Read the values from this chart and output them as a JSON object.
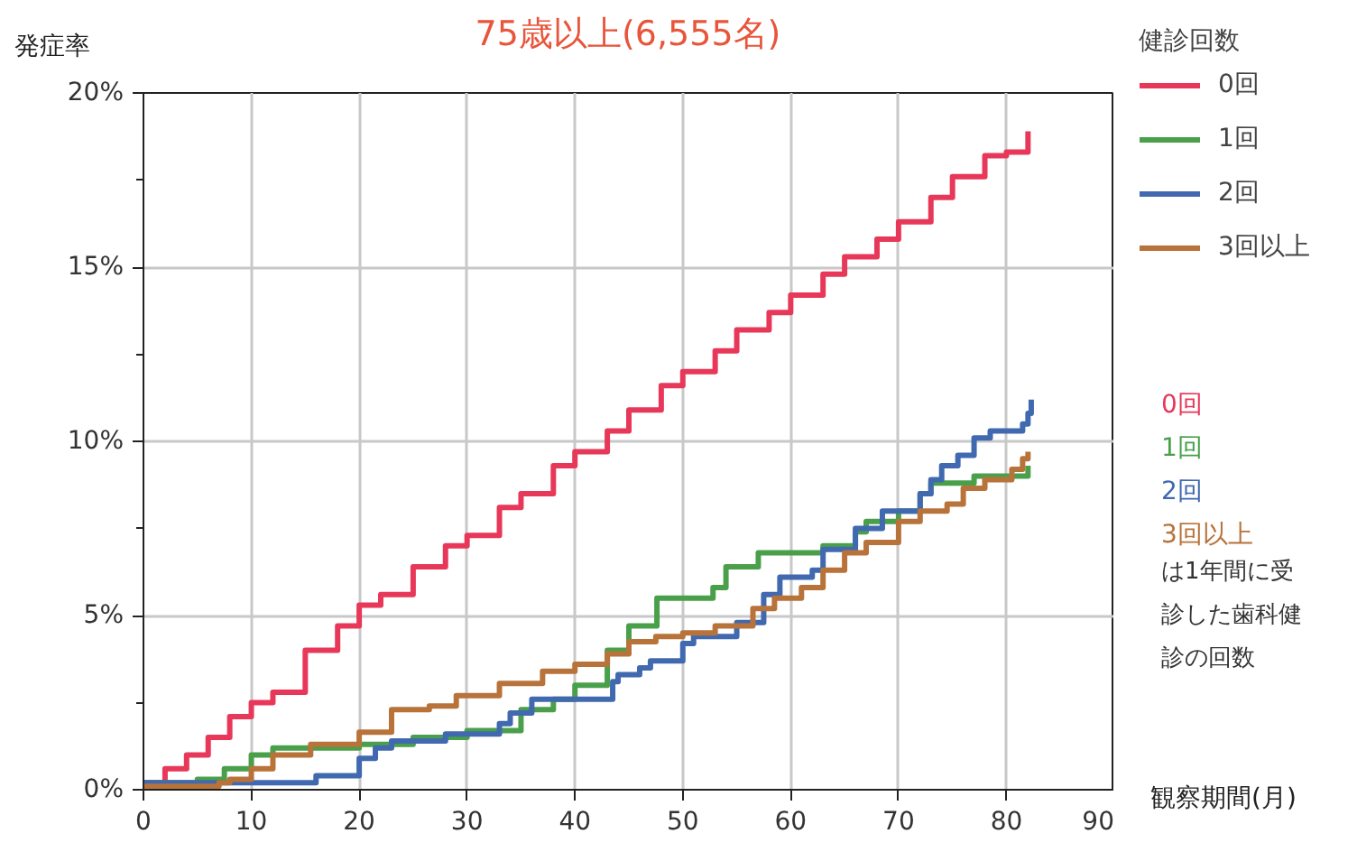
{
  "chart_data": {
    "type": "step",
    "title": "75歳以上(6,555名)",
    "xlabel": "観察期間(月)",
    "ylabel": "発症率",
    "legend_title": "健診回数",
    "legend": "right",
    "grid": true,
    "line_style": "solid",
    "marker": "none",
    "xlim": [
      0,
      90
    ],
    "xticks": [
      0,
      10,
      20,
      30,
      40,
      50,
      60,
      70,
      80,
      90
    ],
    "ylim": [
      0,
      20
    ],
    "yticks": [
      {
        "value": 0,
        "label": "0%"
      },
      {
        "value": 5,
        "label": "5%"
      },
      {
        "value": 10,
        "label": "10%"
      },
      {
        "value": 15,
        "label": "15%"
      },
      {
        "value": 20,
        "label": "20%"
      }
    ],
    "series": [
      {
        "name": "0回",
        "color": "#e8385a",
        "x": [
          0,
          2,
          4,
          6,
          8,
          10,
          12,
          15,
          18,
          20,
          22,
          25,
          28,
          30,
          33,
          35,
          38,
          40,
          43,
          45,
          48,
          50,
          53,
          55,
          58,
          60,
          63,
          65,
          68,
          70,
          73,
          75,
          78,
          80,
          82
        ],
        "values": [
          0.2,
          0.6,
          1.0,
          1.5,
          2.1,
          2.5,
          2.8,
          4.0,
          4.7,
          5.3,
          5.6,
          6.4,
          7.0,
          7.3,
          8.1,
          8.5,
          9.3,
          9.7,
          10.3,
          10.9,
          11.6,
          12.0,
          12.6,
          13.2,
          13.7,
          14.2,
          14.8,
          15.3,
          15.8,
          16.3,
          17.0,
          17.6,
          18.2,
          18.3,
          18.9
        ]
      },
      {
        "name": "1回",
        "color": "#4aa04a",
        "x": [
          0,
          5,
          7.5,
          10,
          12,
          20,
          25,
          30,
          35,
          38,
          40,
          43,
          45,
          47.6,
          52.8,
          54,
          57,
          63,
          66,
          67,
          70,
          72,
          73,
          77,
          82
        ],
        "values": [
          0.2,
          0.3,
          0.6,
          1.0,
          1.2,
          1.3,
          1.5,
          1.7,
          2.3,
          2.6,
          3.0,
          4.0,
          4.7,
          5.5,
          5.8,
          6.4,
          6.8,
          7.0,
          7.4,
          7.7,
          8.0,
          8.5,
          8.8,
          9.0,
          9.3
        ]
      },
      {
        "name": "2回",
        "color": "#4169b0",
        "x": [
          0,
          16,
          20,
          21.5,
          23,
          28,
          33,
          34,
          36,
          43.5,
          44,
          46,
          47,
          50,
          51,
          55,
          57.5,
          59,
          62,
          63,
          66,
          68.5,
          72,
          73,
          74,
          75.5,
          77,
          78.5,
          81.5,
          82,
          82.3
        ],
        "values": [
          0.2,
          0.4,
          0.9,
          1.2,
          1.4,
          1.6,
          1.9,
          2.2,
          2.6,
          3.1,
          3.3,
          3.5,
          3.7,
          4.2,
          4.4,
          4.8,
          5.6,
          6.1,
          6.3,
          6.9,
          7.5,
          8.0,
          8.5,
          8.9,
          9.3,
          9.6,
          10.1,
          10.3,
          10.5,
          10.8,
          11.2
        ]
      },
      {
        "name": "3回以上",
        "color": "#b8733a",
        "x": [
          0,
          7,
          8,
          10,
          12,
          15.5,
          20,
          23,
          26.5,
          29,
          33,
          37,
          40,
          43,
          45,
          47.5,
          50,
          53,
          56.5,
          58.5,
          61,
          63,
          65,
          67,
          70,
          72,
          74.5,
          76,
          78,
          80.5,
          81.5,
          82
        ],
        "values": [
          0.1,
          0.2,
          0.3,
          0.6,
          1.0,
          1.3,
          1.65,
          2.3,
          2.4,
          2.7,
          3.05,
          3.4,
          3.6,
          3.9,
          4.25,
          4.4,
          4.5,
          4.7,
          5.2,
          5.5,
          5.8,
          6.3,
          6.8,
          7.1,
          7.7,
          8.0,
          8.2,
          8.65,
          8.9,
          9.2,
          9.5,
          9.7
        ]
      }
    ],
    "annotations": [
      "は1年間に受診した歯科健診の回数"
    ]
  }
}
